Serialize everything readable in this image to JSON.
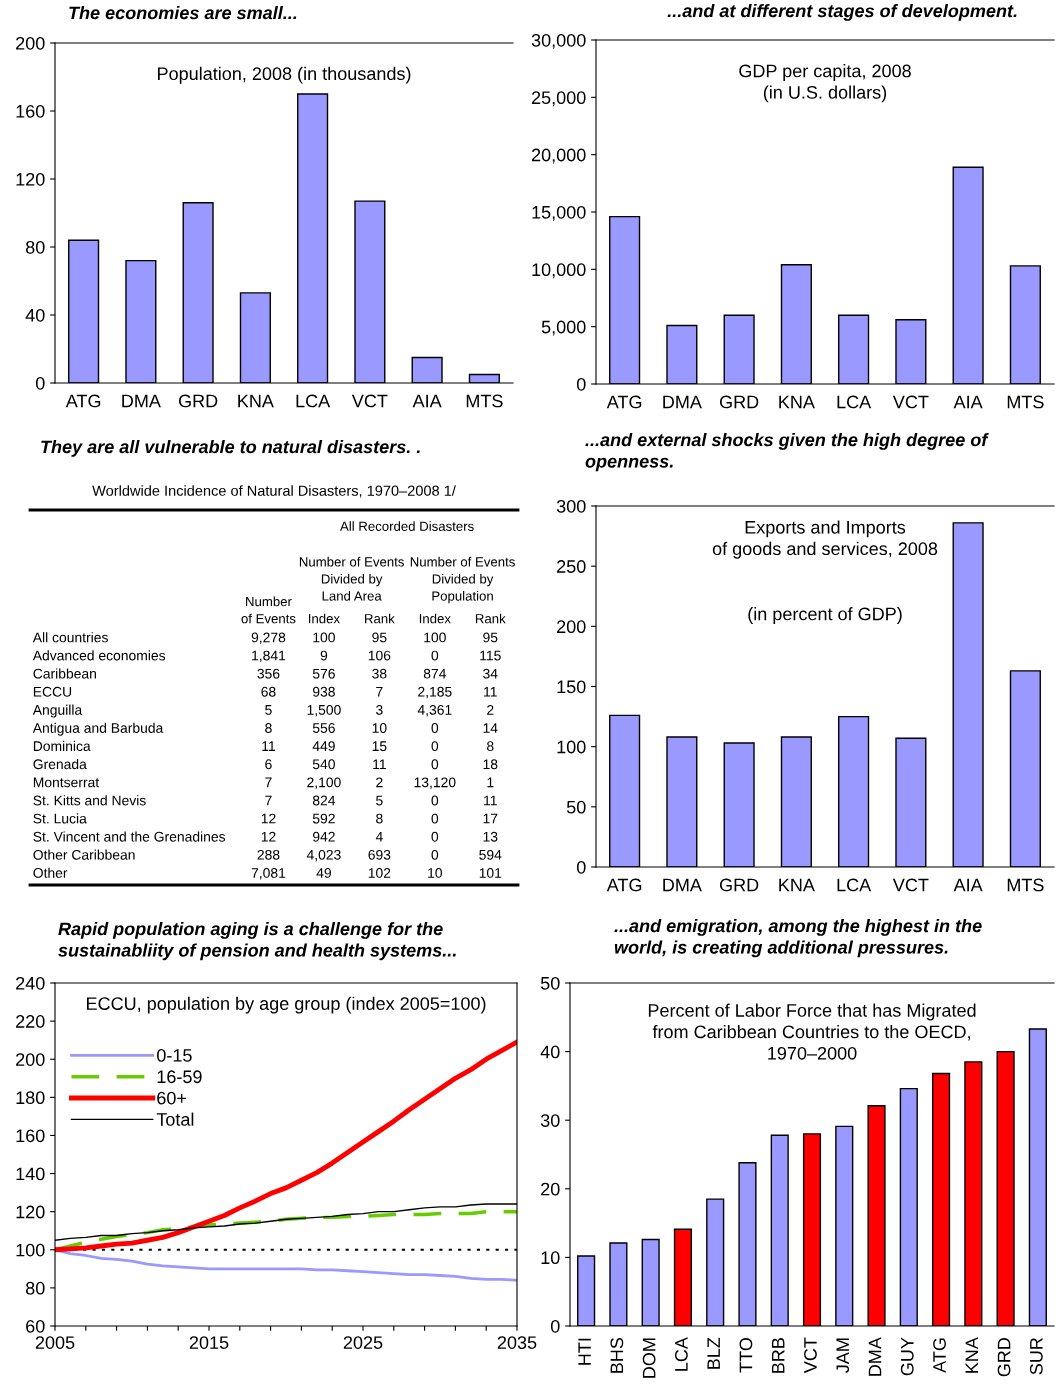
{
  "chart_data": [
    {
      "type": "bar",
      "title": "The economies are small...",
      "subtitle": "Population, 2008 (in thousands)",
      "categories": [
        "ATG",
        "DMA",
        "GRD",
        "KNA",
        "LCA",
        "VCT",
        "AIA",
        "MTS"
      ],
      "values": [
        84,
        72,
        106,
        53,
        170,
        107,
        15,
        5
      ],
      "color": "#9999ff",
      "ylim": [
        0,
        200
      ],
      "yticks": [
        0,
        40,
        80,
        120,
        160,
        200
      ],
      "grid": false
    },
    {
      "type": "bar",
      "title": "...and at different stages of development.",
      "subtitle": "GDP per capita, 2008\n(in U.S. dollars)",
      "categories": [
        "ATG",
        "DMA",
        "GRD",
        "KNA",
        "LCA",
        "VCT",
        "AIA",
        "MTS"
      ],
      "values": [
        14600,
        5100,
        6000,
        10400,
        6000,
        5600,
        18900,
        10300
      ],
      "color": "#9999ff",
      "ylim": [
        0,
        30000
      ],
      "yticks": [
        {
          "value": 0,
          "label": "0"
        },
        {
          "value": 5000,
          "label": "5,000"
        },
        {
          "value": 10000,
          "label": "10,000"
        },
        {
          "value": 15000,
          "label": "15,000"
        },
        {
          "value": 20000,
          "label": "20,000"
        },
        {
          "value": 25000,
          "label": "25,000"
        },
        {
          "value": 30000,
          "label": "30,000"
        }
      ],
      "grid": false
    },
    {
      "type": "heatmap",
      "title": "They are all vulnerable to natural disasters. .",
      "subtitle": "Worldwide Incidence of Natural Disasters, 1970–2008 1/",
      "annotations": [
        "All Recorded Disasters",
        "Number of Events\nDivided by\nLand Area",
        "Number of Events\nDivided by\nPopulation"
      ],
      "color": "#ffffff",
      "categories": [
        "Number\nof Events",
        "Index",
        "Rank",
        "Index",
        "Rank"
      ],
      "y_categories": [
        "All countries",
        "Advanced economies",
        "Caribbean",
        "ECCU",
        "Anguilla",
        "Antigua and Barbuda",
        "Dominica",
        "Grenada",
        "Montserrat",
        "St. Kitts and Nevis",
        "St. Lucia",
        "St. Vincent and the Grenadines",
        "Other Caribbean",
        "Other"
      ],
      "cells": [
        [
          9278,
          100,
          95,
          100,
          95
        ],
        [
          1841,
          9,
          106,
          0,
          115
        ],
        [
          356,
          576,
          38,
          874,
          34
        ],
        [
          68,
          938,
          7,
          2185,
          11
        ],
        [
          5,
          1500,
          3,
          4361,
          2
        ],
        [
          8,
          556,
          10,
          0,
          14
        ],
        [
          11,
          449,
          15,
          0,
          8
        ],
        [
          6,
          540,
          11,
          0,
          18
        ],
        [
          7,
          2100,
          2,
          13120,
          1
        ],
        [
          7,
          824,
          5,
          0,
          11
        ],
        [
          12,
          592,
          8,
          0,
          17
        ],
        [
          12,
          942,
          4,
          0,
          13
        ],
        [
          288,
          4023,
          693,
          0,
          594
        ],
        [
          7081,
          49,
          102,
          10,
          101
        ]
      ],
      "cell_labels": [
        [
          "9,278",
          "100",
          "95",
          "100",
          "95"
        ],
        [
          "1,841",
          "9",
          "106",
          "0",
          "115"
        ],
        [
          "356",
          "576",
          "38",
          "874",
          "34"
        ],
        [
          "68",
          "938",
          "7",
          "2,185",
          "11"
        ],
        [
          "5",
          "1,500",
          "3",
          "4,361",
          "2"
        ],
        [
          "8",
          "556",
          "10",
          "0",
          "14"
        ],
        [
          "11",
          "449",
          "15",
          "0",
          "8"
        ],
        [
          "6",
          "540",
          "11",
          "0",
          "18"
        ],
        [
          "7",
          "2,100",
          "2",
          "13,120",
          "1"
        ],
        [
          "7",
          "824",
          "5",
          "0",
          "11"
        ],
        [
          "12",
          "592",
          "8",
          "0",
          "17"
        ],
        [
          "12",
          "942",
          "4",
          "0",
          "13"
        ],
        [
          "288",
          "4,023",
          "693",
          "0",
          "594"
        ],
        [
          "7,081",
          "49",
          "102",
          "10",
          "101"
        ]
      ]
    },
    {
      "type": "bar",
      "title": "...and external shocks given the high degree of\nopenness.",
      "subtitle": "Exports and Imports\nof goods and services, 2008",
      "annotations": [
        "(in percent of GDP)"
      ],
      "categories": [
        "ATG",
        "DMA",
        "GRD",
        "KNA",
        "LCA",
        "VCT",
        "AIA",
        "MTS"
      ],
      "values": [
        126,
        108,
        103,
        108,
        125,
        107,
        286,
        163
      ],
      "color": "#9999ff",
      "ylim": [
        0,
        300
      ],
      "yticks": [
        0,
        50,
        100,
        150,
        200,
        250,
        300
      ],
      "grid": false
    },
    {
      "type": "line",
      "title": "Rapid population aging is a challenge for the\nsustainabliity of pension and health systems...",
      "subtitle": "ECCU, population by age group (index 2005=100)",
      "x": [
        2005,
        2006,
        2007,
        2008,
        2009,
        2010,
        2011,
        2012,
        2013,
        2014,
        2015,
        2016,
        2017,
        2018,
        2019,
        2020,
        2021,
        2022,
        2023,
        2024,
        2025,
        2026,
        2027,
        2028,
        2029,
        2030,
        2031,
        2032,
        2033,
        2034,
        2035
      ],
      "series": [
        {
          "name": "0-15",
          "color": "#9999ff",
          "line_style": "solid",
          "values": [
            100,
            98,
            97,
            95.5,
            95,
            94,
            92.5,
            91.5,
            91,
            90.5,
            90,
            90,
            90,
            90,
            90,
            90,
            90,
            89.5,
            89.5,
            89,
            88.5,
            88,
            87.5,
            87,
            87,
            86.5,
            86,
            85,
            84.5,
            84.5,
            84
          ]
        },
        {
          "name": "16-59",
          "color": "#66cc00",
          "line_style": "dashed",
          "values": [
            100,
            102,
            104,
            105.5,
            107,
            108,
            109,
            110.5,
            111,
            112,
            113,
            113.5,
            114,
            114.5,
            115,
            116,
            116.5,
            117,
            117,
            117.5,
            117.5,
            118,
            118.5,
            118.5,
            118.5,
            119,
            119,
            119,
            120,
            120,
            120
          ]
        },
        {
          "name": "60+",
          "color": "#ff0000",
          "line_style": "solid",
          "values": [
            100,
            100.5,
            101,
            102,
            103,
            103.5,
            105,
            106.5,
            109,
            112,
            115,
            118,
            122,
            125.5,
            129.5,
            132.5,
            136.5,
            140.5,
            145.5,
            151,
            156.5,
            162,
            167.5,
            173.5,
            179,
            184.5,
            190,
            194.5,
            200,
            204.5,
            209
          ]
        },
        {
          "name": "Total",
          "color": "#000000",
          "line_style": "solid",
          "values": [
            105,
            106,
            106.5,
            107.5,
            107.5,
            108.5,
            109,
            110,
            110.5,
            111.5,
            112,
            112.5,
            113.5,
            114,
            115,
            116,
            116.5,
            117,
            117.5,
            118.5,
            119,
            120,
            120,
            121,
            122,
            122.5,
            122.5,
            123.5,
            124,
            124,
            124
          ]
        }
      ],
      "xlim": [
        2005,
        2035
      ],
      "xticks": [
        2005,
        {
          "value": 2007,
          "label": null
        },
        {
          "value": 2009,
          "label": null
        },
        {
          "value": 2011,
          "label": null
        },
        {
          "value": 2013,
          "label": null
        },
        2015,
        {
          "value": 2017,
          "label": null
        },
        {
          "value": 2019,
          "label": null
        },
        {
          "value": 2021,
          "label": null
        },
        {
          "value": 2023,
          "label": null
        },
        2025,
        {
          "value": 2027,
          "label": null
        },
        {
          "value": 2029,
          "label": null
        },
        {
          "value": 2031,
          "label": null
        },
        {
          "value": 2033,
          "label": null
        },
        2035
      ],
      "ylim": [
        60,
        240
      ],
      "yticks": [
        60,
        80,
        100,
        120,
        140,
        160,
        180,
        200,
        220,
        240
      ],
      "ref_lines": [
        {
          "axis": "y",
          "value": 100,
          "color": "#000000",
          "line_style": "dotted"
        }
      ],
      "legend": "top left",
      "grid": false
    },
    {
      "type": "bar",
      "title": "...and emigration, among the highest in the\nworld, is creating additional pressures.",
      "subtitle": "Percent of Labor Force that has Migrated\nfrom Caribbean Countries to the OECD,\n1970–2000",
      "categories": [
        "HTI",
        "BHS",
        "DOM",
        "LCA",
        "BLZ",
        "TTO",
        "BRB",
        "VCT",
        "JAM",
        "DMA",
        "GUY",
        "ATG",
        "KNA",
        "GRD",
        "SUR"
      ],
      "values": [
        10.2,
        12.1,
        12.6,
        14.1,
        18.5,
        23.8,
        27.8,
        28.0,
        29.1,
        32.1,
        34.6,
        36.8,
        38.5,
        40.0,
        43.3
      ],
      "colors": [
        "#9999ff",
        "#9999ff",
        "#9999ff",
        "#ff0000",
        "#9999ff",
        "#9999ff",
        "#9999ff",
        "#ff0000",
        "#9999ff",
        "#ff0000",
        "#9999ff",
        "#ff0000",
        "#ff0000",
        "#ff0000",
        "#9999ff"
      ],
      "ylim": [
        0,
        50
      ],
      "yticks": [
        0,
        10,
        20,
        30,
        40,
        50
      ],
      "grid": false
    }
  ]
}
